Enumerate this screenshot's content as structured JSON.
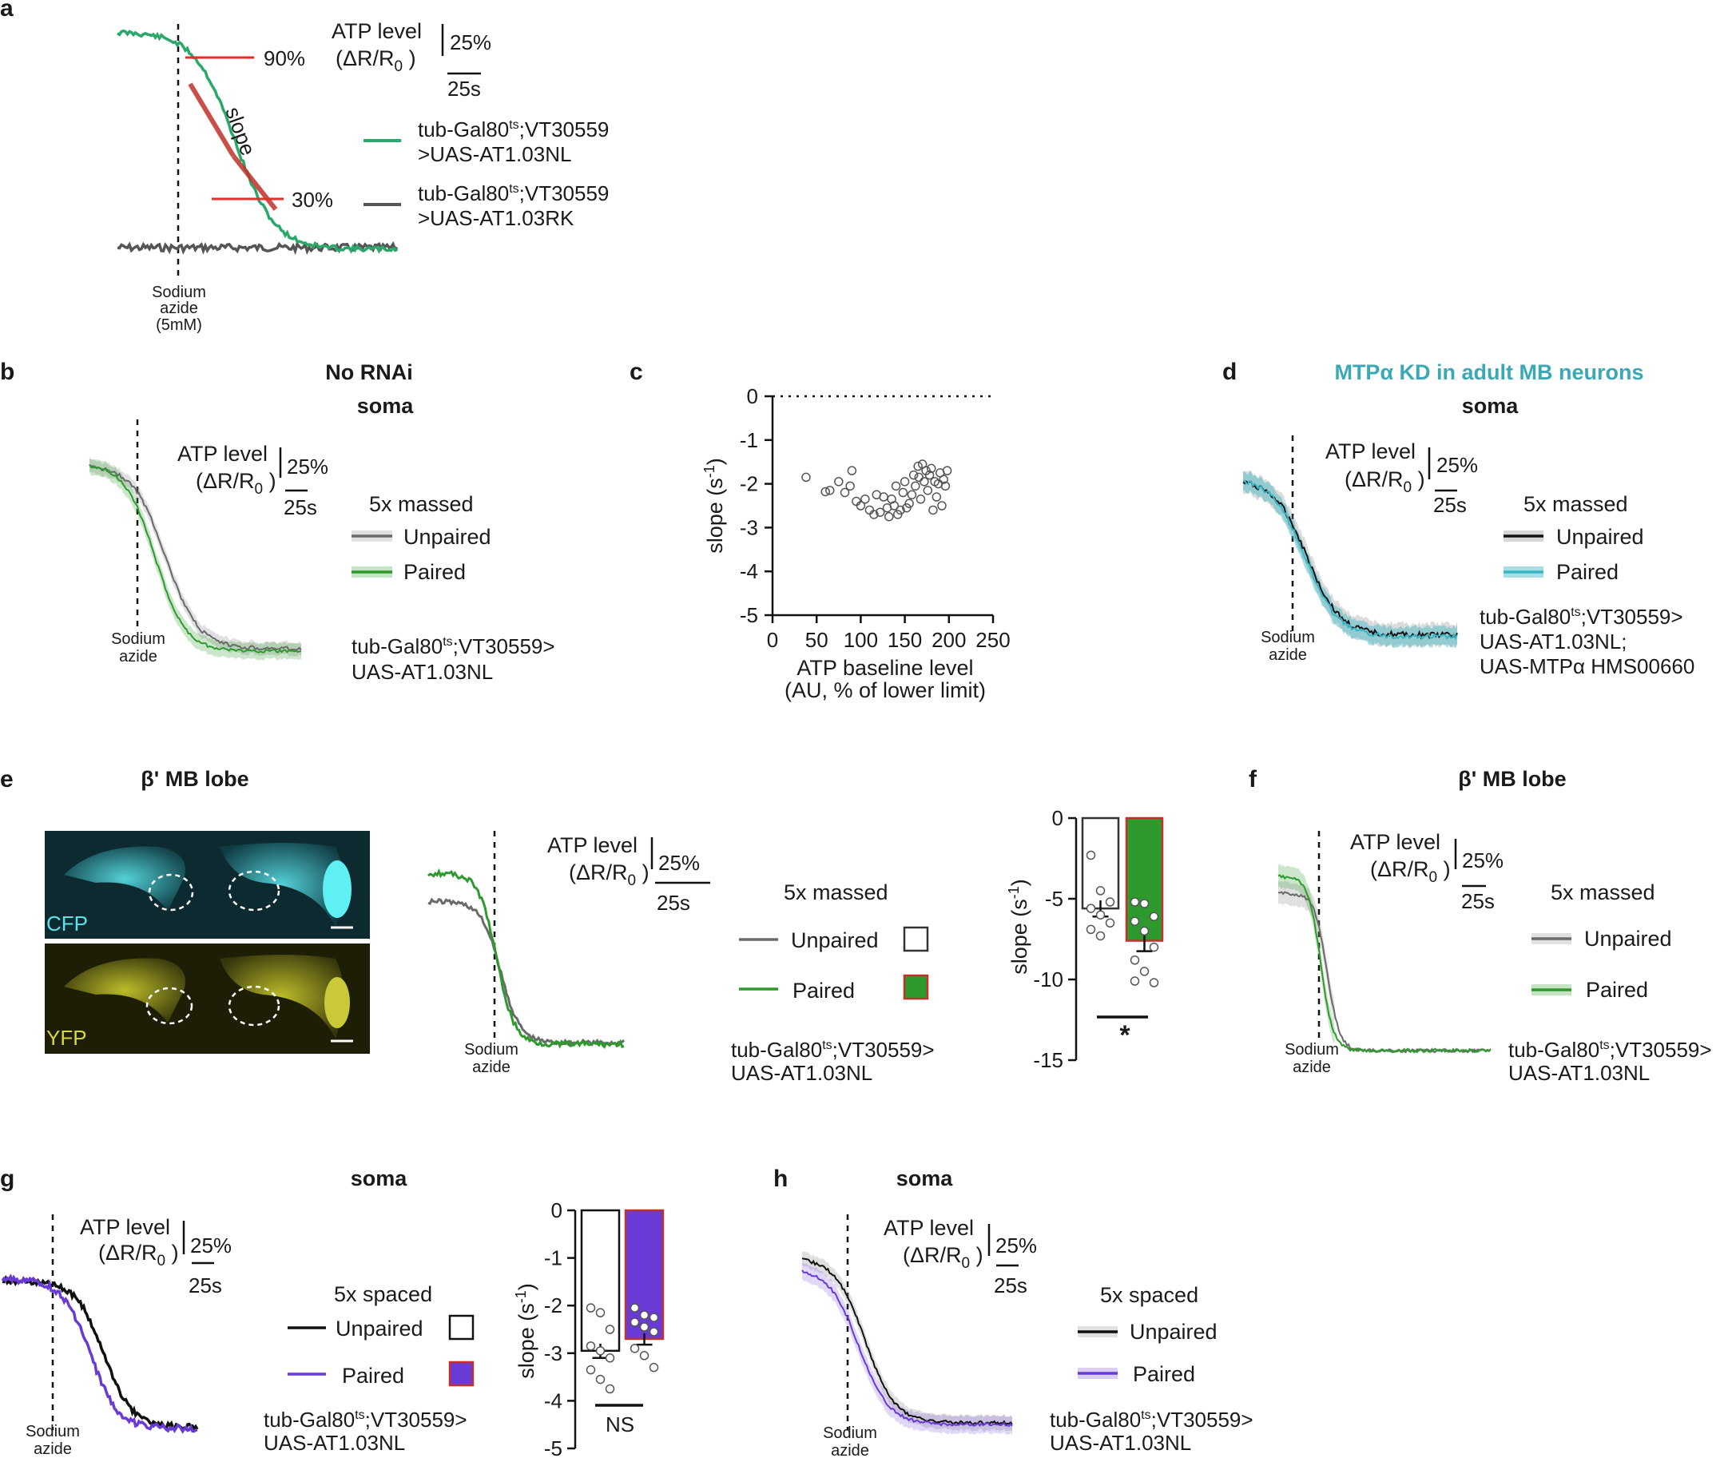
{
  "colors": {
    "green": "#2e9a2e",
    "green_a": "#2aa86a",
    "gray": "#6a6a6a",
    "black": "#111111",
    "cyan": "#3ab5c4",
    "purple": "#6a3ad6",
    "red": "#e2302c",
    "bar_border_red": "#c0322b",
    "title_teal": "#3aa9b5"
  },
  "panel_labels": [
    "a",
    "b",
    "c",
    "d",
    "e",
    "f",
    "g",
    "h"
  ],
  "panel_a": {
    "ylabel_line1": "ATP level",
    "ylabel_line2": "(ΔR/R",
    "ylabel_sub": "0",
    "ylabel_end": " )",
    "scale_y": "25%",
    "scale_x": "25s",
    "level_90": "90%",
    "level_30": "30%",
    "slope_label": "slope",
    "stim_line1": "Sodium",
    "stim_line2": "azide",
    "stim_line3": "(5mM)",
    "legend": [
      {
        "line1": "tub-Gal80",
        "sup": "ts",
        "rest1": ";VT30559",
        "line2": ">UAS-AT1.03NL",
        "color": "#2aa86a"
      },
      {
        "line1": "tub-Gal80",
        "sup": "ts",
        "rest1": ";VT30559",
        "line2": ">UAS-AT1.03RK",
        "color": "#555555"
      }
    ]
  },
  "panel_b": {
    "title": "No RNAi",
    "subtitle": "soma",
    "ylabel_line1": "ATP level",
    "ylabel_line2": "(ΔR/R",
    "ylabel_sub": "0",
    "ylabel_end": " )",
    "scale_y": "25%",
    "scale_x": "25s",
    "protocol": "5x massed",
    "legend": [
      "Unpaired",
      "Paired"
    ],
    "stim_line1": "Sodium",
    "stim_line2": "azide",
    "genotype_line1": "tub-Gal80",
    "genotype_sup": "ts",
    "genotype_rest1": ";VT30559>",
    "genotype_line2": "UAS-AT1.03NL"
  },
  "panel_c": {
    "ylabel": "slope (s",
    "ylabel_sup": "-1",
    "ylabel_end": ")",
    "xlabel_line1": "ATP baseline level",
    "xlabel_line2": "(AU, % of lower limit)",
    "x_ticks": [
      "0",
      "50",
      "100",
      "150",
      "200",
      "250"
    ],
    "y_ticks": [
      "0",
      "-1",
      "-2",
      "-3",
      "-4",
      "-5"
    ]
  },
  "panel_d": {
    "title": "MTPα KD in adult MB neurons",
    "subtitle": "soma",
    "ylabel_line1": "ATP level",
    "ylabel_line2": "(ΔR/R",
    "ylabel_sub": "0",
    "ylabel_end": " )",
    "scale_y": "25%",
    "scale_x": "25s",
    "protocol": "5x massed",
    "legend": [
      "Unpaired",
      "Paired"
    ],
    "stim_line1": "Sodium",
    "stim_line2": "azide",
    "genotype_line1": "tub-Gal80",
    "genotype_sup": "ts",
    "genotype_rest1": ";VT30559>",
    "genotype_line2": "UAS-AT1.03NL;",
    "genotype_line3": "UAS-MTPα HMS00660"
  },
  "panel_e": {
    "title": "β' MB lobe",
    "img_label_top": "CFP",
    "img_label_bottom": "YFP",
    "ylabel_line1": "ATP level",
    "ylabel_line2": "(ΔR/R",
    "ylabel_sub": "0",
    "ylabel_end": " )",
    "scale_y": "25%",
    "scale_x": "25s",
    "protocol": "5x massed",
    "legend": [
      "Unpaired",
      "Paired"
    ],
    "stim_line1": "Sodium",
    "stim_line2": "azide",
    "genotype_line1": "tub-Gal80",
    "genotype_sup": "ts",
    "genotype_rest1": ";VT30559>",
    "genotype_line2": "UAS-AT1.03NL",
    "bar_ylabel": "slope (s",
    "bar_ylabel_sup": "-1",
    "bar_ylabel_end": ")",
    "bar_y_ticks": [
      "0",
      "-5",
      "-10",
      "-15"
    ],
    "significance": "*"
  },
  "panel_f": {
    "title": "β' MB lobe",
    "ylabel_line1": "ATP level",
    "ylabel_line2": "(ΔR/R",
    "ylabel_sub": "0",
    "ylabel_end": " )",
    "scale_y": "25%",
    "scale_x": "25s",
    "protocol": "5x massed",
    "legend": [
      "Unpaired",
      "Paired"
    ],
    "stim_line1": "Sodium",
    "stim_line2": "azide",
    "genotype_line1": "tub-Gal80",
    "genotype_sup": "ts",
    "genotype_rest1": ";VT30559>",
    "genotype_line2": "UAS-AT1.03NL"
  },
  "panel_g": {
    "title": "soma",
    "ylabel_line1": "ATP level",
    "ylabel_line2": "(ΔR/R",
    "ylabel_sub": "0",
    "ylabel_end": " )",
    "scale_y": "25%",
    "scale_x": "25s",
    "protocol": "5x spaced",
    "legend": [
      "Unpaired",
      "Paired"
    ],
    "stim_line1": "Sodium",
    "stim_line2": "azide",
    "genotype_line1": "tub-Gal80",
    "genotype_sup": "ts",
    "genotype_rest1": ";VT30559>",
    "genotype_line2": "UAS-AT1.03NL",
    "bar_ylabel": "slope (s",
    "bar_ylabel_sup": "-1",
    "bar_ylabel_end": ")",
    "bar_y_ticks": [
      "0",
      "-1",
      "-2",
      "-3",
      "-4",
      "-5"
    ],
    "significance": "NS"
  },
  "panel_h": {
    "title": "soma",
    "ylabel_line1": "ATP level",
    "ylabel_line2": "(ΔR/R",
    "ylabel_sub": "0",
    "ylabel_end": " )",
    "scale_y": "25%",
    "scale_x": "25s",
    "protocol": "5x spaced",
    "legend": [
      "Unpaired",
      "Paired"
    ],
    "stim_line1": "Sodium",
    "stim_line2": "azide",
    "genotype_line1": "tub-Gal80",
    "genotype_sup": "ts",
    "genotype_rest1": ";VT30559>",
    "genotype_line2": "UAS-AT1.03NL"
  },
  "chart_data": [
    {
      "panel": "c",
      "type": "scatter",
      "xlabel": "ATP baseline level (AU, % of lower limit)",
      "ylabel": "slope (s-1)",
      "xlim": [
        0,
        250
      ],
      "ylim": [
        -5,
        0
      ],
      "reference_line_y": 0,
      "points": [
        [
          38,
          -1.85
        ],
        [
          60,
          -2.18
        ],
        [
          65,
          -2.15
        ],
        [
          75,
          -1.95
        ],
        [
          82,
          -2.2
        ],
        [
          88,
          -2.05
        ],
        [
          90,
          -1.7
        ],
        [
          95,
          -2.4
        ],
        [
          100,
          -2.5
        ],
        [
          105,
          -2.35
        ],
        [
          110,
          -2.6
        ],
        [
          115,
          -2.7
        ],
        [
          118,
          -2.25
        ],
        [
          122,
          -2.65
        ],
        [
          126,
          -2.3
        ],
        [
          130,
          -2.55
        ],
        [
          132,
          -2.75
        ],
        [
          135,
          -2.35
        ],
        [
          138,
          -2.5
        ],
        [
          140,
          -2.05
        ],
        [
          142,
          -2.7
        ],
        [
          145,
          -2.6
        ],
        [
          148,
          -2.2
        ],
        [
          150,
          -1.95
        ],
        [
          152,
          -2.55
        ],
        [
          155,
          -2.45
        ],
        [
          158,
          -2.25
        ],
        [
          160,
          -1.8
        ],
        [
          162,
          -2.05
        ],
        [
          165,
          -1.6
        ],
        [
          166,
          -1.85
        ],
        [
          168,
          -2.35
        ],
        [
          170,
          -1.55
        ],
        [
          172,
          -1.95
        ],
        [
          174,
          -1.7
        ],
        [
          176,
          -2.15
        ],
        [
          178,
          -1.8
        ],
        [
          180,
          -1.65
        ],
        [
          182,
          -2.6
        ],
        [
          184,
          -1.95
        ],
        [
          186,
          -2.3
        ],
        [
          188,
          -2.0
        ],
        [
          190,
          -1.75
        ],
        [
          192,
          -2.5
        ],
        [
          194,
          -1.9
        ],
        [
          196,
          -2.05
        ],
        [
          198,
          -1.7
        ]
      ]
    },
    {
      "panel": "e",
      "type": "bar",
      "categories": [
        "Unpaired",
        "Paired"
      ],
      "values": [
        -5.6,
        -7.6
      ],
      "sem": [
        0.5,
        0.65
      ],
      "points": [
        [
          -2.3,
          -4.5,
          -5.2,
          -5.6,
          -6.0,
          -6.5,
          -6.9,
          -7.3
        ],
        [
          -5.2,
          -5.3,
          -6.1,
          -6.4,
          -7.0,
          -8.0,
          -8.8,
          -9.5,
          -10.2,
          -10.1
        ]
      ],
      "ylim": [
        -15,
        0
      ],
      "ylabel": "slope (s-1)",
      "significance": "*"
    },
    {
      "panel": "g",
      "type": "bar",
      "categories": [
        "Unpaired",
        "Paired"
      ],
      "values": [
        -2.95,
        -2.7
      ],
      "sem": [
        0.15,
        0.12
      ],
      "points": [
        [
          -2.05,
          -2.15,
          -2.5,
          -2.85,
          -2.95,
          -3.1,
          -3.35,
          -3.55,
          -3.75
        ],
        [
          -2.05,
          -2.2,
          -2.25,
          -2.35,
          -2.45,
          -2.55,
          -2.9,
          -3.05,
          -3.3
        ]
      ],
      "ylim": [
        -5,
        0
      ],
      "ylabel": "slope (s-1)",
      "significance": "NS"
    },
    {
      "panel": "a",
      "type": "line",
      "series": [
        {
          "baseline": 0.1,
          "final": 0.9,
          "start_t": 0.2,
          "end_t": 0.62
        },
        {
          "baseline": 0.905,
          "final": 0.905,
          "start_t": 0,
          "end_t": 1
        }
      ]
    }
  ]
}
